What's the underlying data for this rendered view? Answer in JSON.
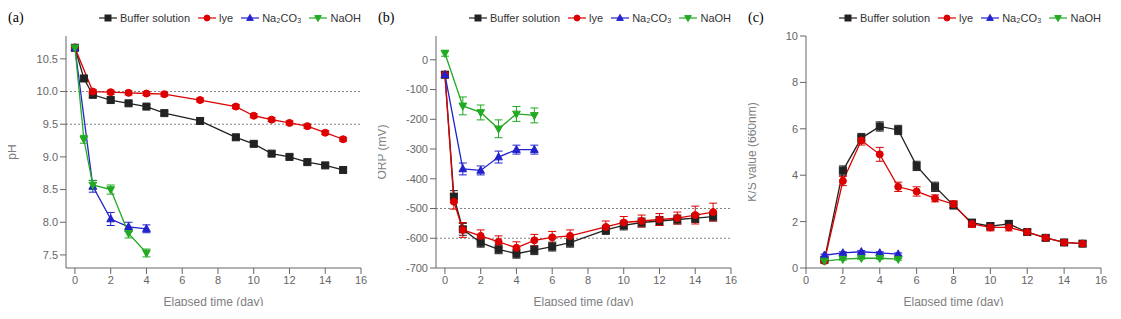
{
  "chart_data": [
    {
      "type": "line",
      "title": "(a)",
      "x_label": "Elapsed time (day)",
      "y_label": "pH",
      "xlim": [
        -0.5,
        16
      ],
      "ylim": [
        7.3,
        10.85
      ],
      "xticks": [
        0,
        2,
        4,
        6,
        8,
        10,
        12,
        14,
        16
      ],
      "yticks": [
        7.5,
        {
          "value": 8.0,
          "label": "8.0"
        },
        8.5,
        {
          "value": 9.0,
          "label": "9.0"
        },
        9.5,
        {
          "value": 10.0,
          "label": "10.0"
        },
        10.5
      ],
      "hlines": [
        10.0,
        9.5
      ],
      "grid": false,
      "legend": "upper right",
      "series": [
        {
          "name": "Buffer solution",
          "color": "#222222",
          "marker": "square",
          "line_style": "solid",
          "x": [
            0,
            0.5,
            1,
            2,
            3,
            4,
            5,
            7,
            9,
            10,
            11,
            12,
            13,
            14,
            15
          ],
          "values": [
            10.67,
            10.2,
            9.95,
            9.87,
            9.82,
            9.77,
            9.67,
            9.55,
            9.3,
            9.2,
            9.05,
            9.0,
            8.92,
            8.87,
            8.8
          ],
          "yerr": [
            0.04,
            0.04,
            0.04,
            0.03,
            0.03,
            0.03,
            0.03,
            0.03,
            0.03,
            0.03,
            0.03,
            0.03,
            0.03,
            0.03,
            0.03
          ]
        },
        {
          "name": "lye",
          "color": "#dd0000",
          "marker": "circle",
          "line_style": "solid",
          "x": [
            0,
            1,
            2,
            3,
            4,
            5,
            7,
            9,
            10,
            11,
            12,
            13,
            14,
            15
          ],
          "values": [
            10.67,
            10.0,
            9.99,
            9.98,
            9.97,
            9.96,
            9.87,
            9.77,
            9.63,
            9.57,
            9.52,
            9.47,
            9.37,
            9.27
          ],
          "yerr": [
            0.04,
            0.03,
            0.03,
            0.03,
            0.03,
            0.03,
            0.03,
            0.03,
            0.03,
            0.03,
            0.03,
            0.03,
            0.03,
            0.03
          ]
        },
        {
          "name": "Na₂CO₃",
          "color": "#2222cc",
          "marker": "triangle-up",
          "line_style": "solid",
          "x": [
            0,
            1,
            2,
            3,
            4
          ],
          "values": [
            10.67,
            8.55,
            8.05,
            7.93,
            7.9
          ],
          "yerr": [
            0.04,
            0.09,
            0.1,
            0.07,
            0.06
          ]
        },
        {
          "name": "NaOH",
          "color": "#22aa22",
          "marker": "triangle-down",
          "line_style": "solid",
          "x": [
            0,
            0.5,
            1,
            2,
            3,
            4
          ],
          "values": [
            10.67,
            9.27,
            8.57,
            8.5,
            7.83,
            7.53
          ],
          "yerr": [
            0.04,
            0.06,
            0.07,
            0.07,
            0.07,
            0.06
          ]
        }
      ]
    },
    {
      "type": "line",
      "title": "(b)",
      "x_label": "Elapsed time (day)",
      "y_label": "ORP (mV)",
      "xlim": [
        -0.5,
        16
      ],
      "ylim": [
        -700,
        80
      ],
      "xticks": [
        0,
        2,
        4,
        6,
        8,
        10,
        12,
        14,
        16
      ],
      "yticks": [
        -700,
        -600,
        -500,
        -400,
        -300,
        -200,
        -100,
        0
      ],
      "hlines": [
        -500,
        -600
      ],
      "grid": false,
      "legend": "upper right",
      "series": [
        {
          "name": "Buffer solution",
          "color": "#222222",
          "marker": "square",
          "line_style": "solid",
          "x": [
            0,
            0.5,
            1,
            2,
            3,
            4,
            5,
            6,
            7,
            9,
            10,
            11,
            12,
            13,
            14,
            15
          ],
          "values": [
            -50,
            -460,
            -570,
            -615,
            -637,
            -652,
            -640,
            -628,
            -615,
            -572,
            -557,
            -547,
            -542,
            -537,
            -532,
            -527
          ],
          "yerr": [
            10,
            20,
            20,
            15,
            15,
            15,
            15,
            15,
            15,
            15,
            15,
            15,
            15,
            15,
            15,
            15
          ]
        },
        {
          "name": "lye",
          "color": "#dd0000",
          "marker": "circle",
          "line_style": "solid",
          "x": [
            0,
            0.5,
            1,
            2,
            3,
            4,
            5,
            6,
            7,
            9,
            10,
            11,
            12,
            13,
            14,
            15
          ],
          "values": [
            -50,
            -477,
            -572,
            -592,
            -612,
            -632,
            -607,
            -597,
            -592,
            -562,
            -547,
            -542,
            -537,
            -532,
            -522,
            -512
          ],
          "yerr": [
            10,
            25,
            25,
            20,
            20,
            20,
            20,
            20,
            20,
            20,
            20,
            20,
            20,
            20,
            30,
            30
          ]
        },
        {
          "name": "Na₂CO₃",
          "color": "#2222cc",
          "marker": "triangle-up",
          "line_style": "solid",
          "x": [
            0,
            1,
            2,
            3,
            4,
            5
          ],
          "values": [
            -50,
            -367,
            -372,
            -327,
            -302,
            -302
          ],
          "yerr": [
            10,
            20,
            15,
            20,
            15,
            15
          ]
        },
        {
          "name": "NaOH",
          "color": "#22aa22",
          "marker": "triangle-down",
          "line_style": "solid",
          "x": [
            0,
            1,
            2,
            3,
            4,
            5
          ],
          "values": [
            22,
            -155,
            -177,
            -232,
            -182,
            -187
          ],
          "yerr": [
            10,
            30,
            25,
            30,
            25,
            25
          ]
        }
      ]
    },
    {
      "type": "line",
      "title": "(c)",
      "x_label": "Elapsed time (day)",
      "y_label": "K/S value (660nm)",
      "xlim": [
        0,
        16
      ],
      "ylim": [
        0,
        10
      ],
      "xticks": [
        0,
        2,
        4,
        6,
        8,
        10,
        12,
        14,
        16
      ],
      "yticks": [
        0,
        2,
        4,
        6,
        8,
        10
      ],
      "grid": false,
      "legend": "upper right",
      "series": [
        {
          "name": "Buffer solution",
          "color": "#222222",
          "marker": "square",
          "line_style": "solid",
          "x": [
            1,
            2,
            3,
            4,
            5,
            6,
            7,
            8,
            9,
            10,
            11,
            12,
            13,
            14,
            15
          ],
          "values": [
            0.35,
            4.2,
            5.6,
            6.1,
            5.95,
            4.4,
            3.5,
            2.7,
            1.95,
            1.8,
            1.9,
            1.55,
            1.3,
            1.1,
            1.05
          ],
          "yerr": [
            0.05,
            0.2,
            0.2,
            0.2,
            0.2,
            0.2,
            0.2,
            0.15,
            0.15,
            0.15,
            0.15,
            0.1,
            0.1,
            0.1,
            0.1
          ]
        },
        {
          "name": "lye",
          "color": "#dd0000",
          "marker": "circle",
          "line_style": "solid",
          "x": [
            1,
            2,
            3,
            4,
            5,
            6,
            7,
            8,
            9,
            10,
            11,
            12,
            13,
            14,
            15
          ],
          "values": [
            0.3,
            3.75,
            5.5,
            4.9,
            3.5,
            3.3,
            3.0,
            2.75,
            1.9,
            1.75,
            1.75,
            1.55,
            1.3,
            1.1,
            1.05
          ],
          "yerr": [
            0.05,
            0.2,
            0.2,
            0.3,
            0.2,
            0.2,
            0.15,
            0.15,
            0.15,
            0.15,
            0.15,
            0.1,
            0.1,
            0.1,
            0.1
          ]
        },
        {
          "name": "Na₂CO₃",
          "color": "#2222cc",
          "marker": "triangle-up",
          "line_style": "solid",
          "x": [
            1,
            2,
            3,
            4,
            5
          ],
          "values": [
            0.55,
            0.65,
            0.7,
            0.65,
            0.6
          ],
          "yerr": [
            0.05,
            0.05,
            0.05,
            0.05,
            0.05
          ]
        },
        {
          "name": "NaOH",
          "color": "#22aa22",
          "marker": "triangle-down",
          "line_style": "solid",
          "x": [
            1,
            2,
            3,
            4,
            5
          ],
          "values": [
            0.3,
            0.38,
            0.42,
            0.42,
            0.38
          ],
          "yerr": [
            0.04,
            0.04,
            0.04,
            0.04,
            0.04
          ]
        }
      ]
    }
  ]
}
